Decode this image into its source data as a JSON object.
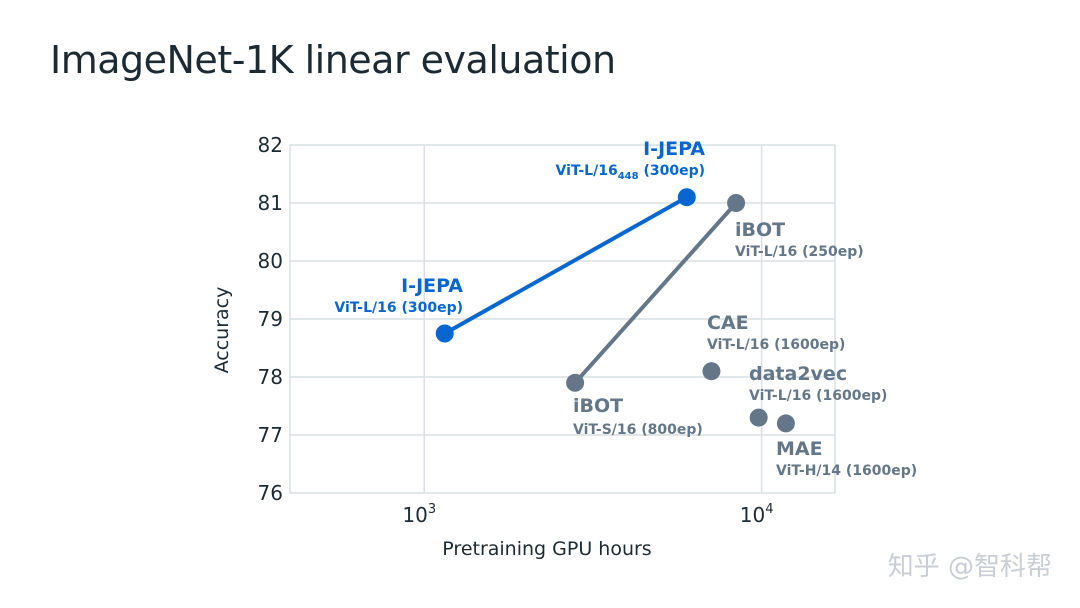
{
  "title": "ImageNet-1K linear evaluation",
  "watermark": "知乎 @智科帮",
  "colors": {
    "jepa": "#0866d1",
    "other": "#637789",
    "grid": "#d9dfe4",
    "text": "#1c2b33"
  },
  "chart_data": {
    "type": "scatter",
    "xlabel": "Pretraining GPU hours",
    "ylabel": "Accuracy",
    "xscale": "log",
    "xlim": [
      400,
      16500
    ],
    "ylim": [
      76,
      82
    ],
    "yticks": [
      76,
      77,
      78,
      79,
      80,
      81,
      82
    ],
    "xticks": [
      {
        "base": "10",
        "exp": "3",
        "value": 1000
      },
      {
        "base": "10",
        "exp": "4",
        "value": 10000
      }
    ],
    "grid": true,
    "series": [
      {
        "group": "jepa",
        "color": "#0866d1",
        "connected": true,
        "points": [
          {
            "x": 1150,
            "y": 78.75,
            "name": "I-JEPA",
            "desc": "ViT-L/16 (300ep)",
            "sub": "",
            "desc_tail": ""
          },
          {
            "x": 6000,
            "y": 81.1,
            "name": "I-JEPA",
            "desc": "ViT-L/16",
            "sub": "448",
            "desc_tail": " (300ep)"
          }
        ]
      },
      {
        "group": "ibot",
        "color": "#637789",
        "connected": true,
        "points": [
          {
            "x": 2800,
            "y": 77.9,
            "name": "iBOT",
            "desc": "ViT-S/16 (800ep)",
            "sub": "",
            "desc_tail": ""
          },
          {
            "x": 8400,
            "y": 81.0,
            "name": "iBOT",
            "desc": "ViT-L/16 (250ep)",
            "sub": "",
            "desc_tail": ""
          }
        ]
      },
      {
        "group": "cae",
        "color": "#637789",
        "connected": false,
        "points": [
          {
            "x": 7100,
            "y": 78.1,
            "name": "CAE",
            "desc": "ViT-L/16 (1600ep)",
            "sub": "",
            "desc_tail": ""
          }
        ]
      },
      {
        "group": "data2vec",
        "color": "#637789",
        "connected": false,
        "points": [
          {
            "x": 9800,
            "y": 77.3,
            "name": "data2vec",
            "desc": "ViT-L/16 (1600ep)",
            "sub": "",
            "desc_tail": ""
          }
        ]
      },
      {
        "group": "mae",
        "color": "#637789",
        "connected": false,
        "points": [
          {
            "x": 11800,
            "y": 77.2,
            "name": "MAE",
            "desc": "ViT-H/14 (1600ep)",
            "sub": "",
            "desc_tail": ""
          }
        ]
      }
    ]
  }
}
